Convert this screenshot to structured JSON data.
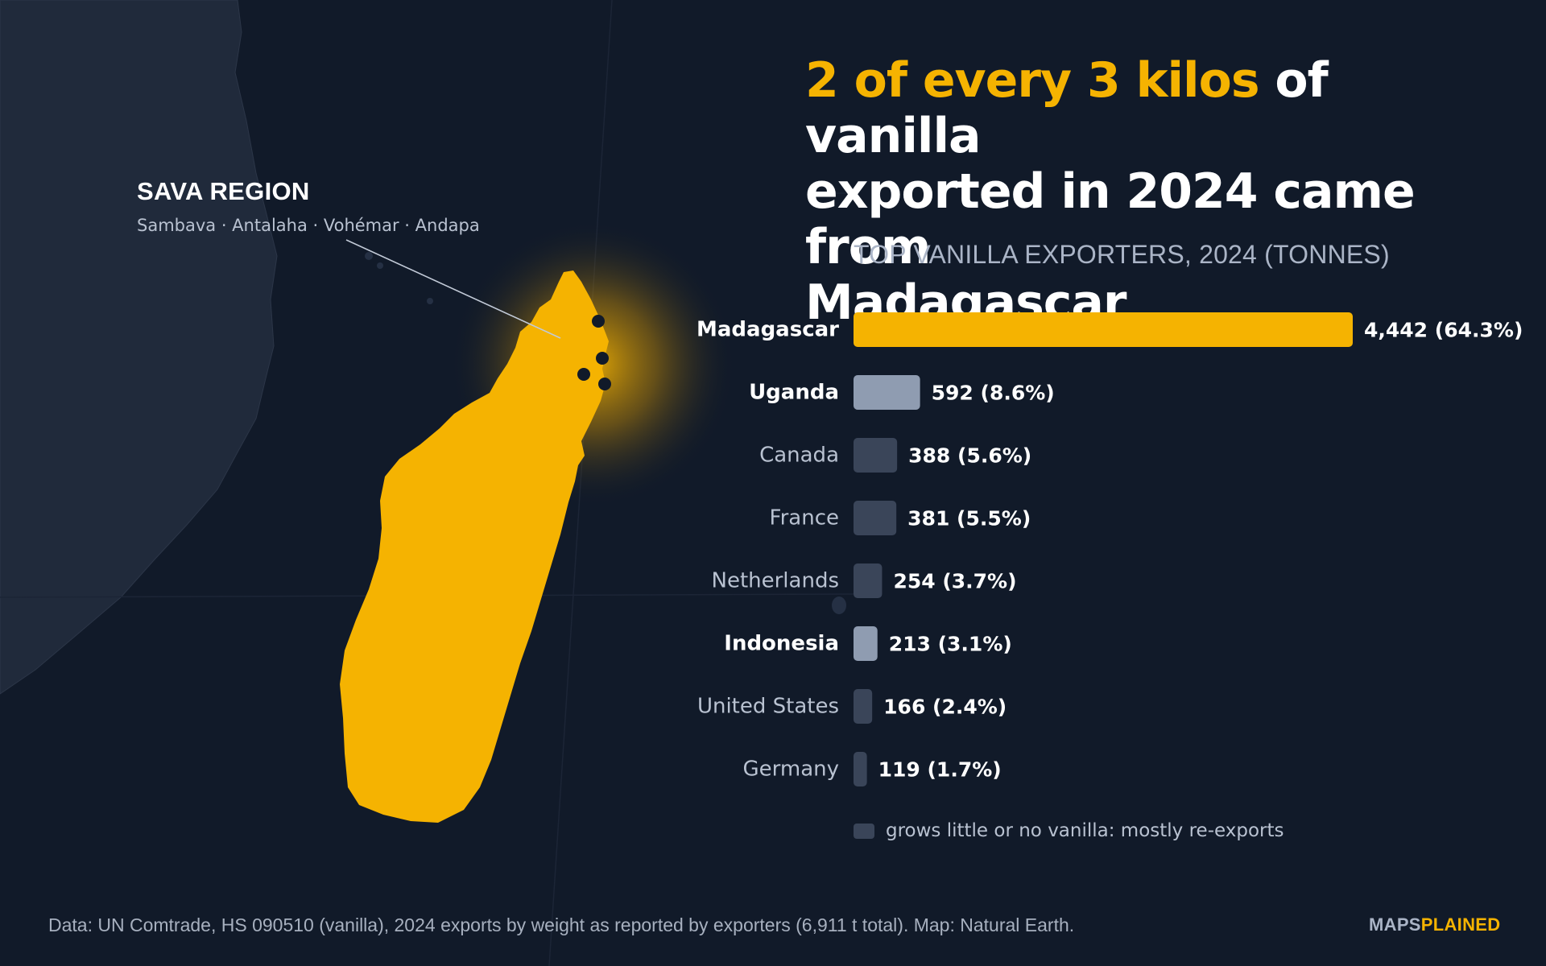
{
  "headline": {
    "highlight": "2 of every 3 kilos",
    "rest_line1": " of vanilla",
    "rest_line2": "exported in 2024 came from",
    "rest_line3": "Madagascar"
  },
  "map": {
    "region_title": "SAVA REGION",
    "region_towns": "Sambava · Antalaha · Vohémar · Andapa"
  },
  "chart_data": {
    "type": "bar",
    "orientation": "horizontal",
    "title": "TOP VANILLA EXPORTERS, 2024 (TONNES)",
    "categories": [
      "Madagascar",
      "Uganda",
      "Canada",
      "France",
      "Netherlands",
      "Indonesia",
      "United States",
      "Germany"
    ],
    "values": [
      4442,
      592,
      388,
      381,
      254,
      213,
      166,
      119
    ],
    "value_labels": [
      "4,442 (64.3%)",
      "592 (8.6%)",
      "388 (5.6%)",
      "381 (5.5%)",
      "254 (3.7%)",
      "213 (3.1%)",
      "166 (2.4%)",
      "119 (1.7%)"
    ],
    "reexporter": [
      false,
      false,
      true,
      true,
      true,
      false,
      true,
      true
    ],
    "colors": {
      "Madagascar": "#f5b301",
      "grower": "#8f9cb1",
      "reexporter": "#3a4559"
    },
    "xlim": [
      0,
      4442
    ],
    "grid": false,
    "legend": [
      {
        "label": "grows little or no vanilla: mostly re-exports",
        "color": "#3a4559"
      }
    ]
  },
  "footer": {
    "source": "Data: UN Comtrade, HS 090510 (vanilla), 2024 exports by weight as reported by exporters (6,911 t total). Map: Natural Earth.",
    "brand_a": "MAPS",
    "brand_b": "PLAINED"
  }
}
